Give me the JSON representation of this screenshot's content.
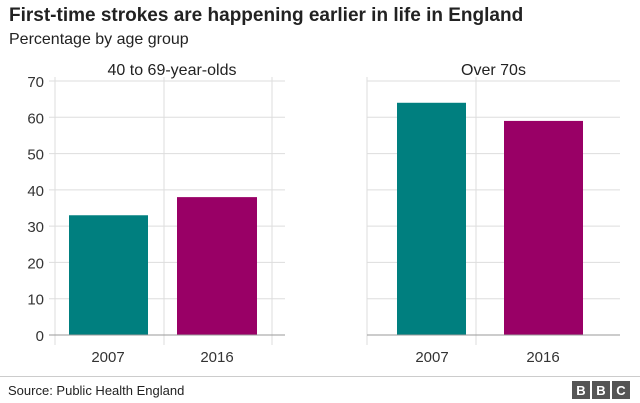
{
  "chart_data": {
    "type": "bar",
    "title": "First-time strokes are happening earlier in life in England",
    "subtitle": "Percentage by age group",
    "ylim": [
      0,
      70
    ],
    "yticks": [
      0,
      10,
      20,
      30,
      40,
      50,
      60,
      70
    ],
    "grid": true,
    "panels": [
      {
        "label": "40 to 69-year-olds",
        "categories": [
          "2007",
          "2016"
        ],
        "values": [
          33,
          38
        ]
      },
      {
        "label": "Over 70s",
        "categories": [
          "2007",
          "2016"
        ],
        "values": [
          64,
          59
        ]
      }
    ],
    "colors": [
      "#007f7f",
      "#990066"
    ]
  },
  "footer": {
    "source": "Source: Public Health England",
    "logo": "BBC"
  }
}
